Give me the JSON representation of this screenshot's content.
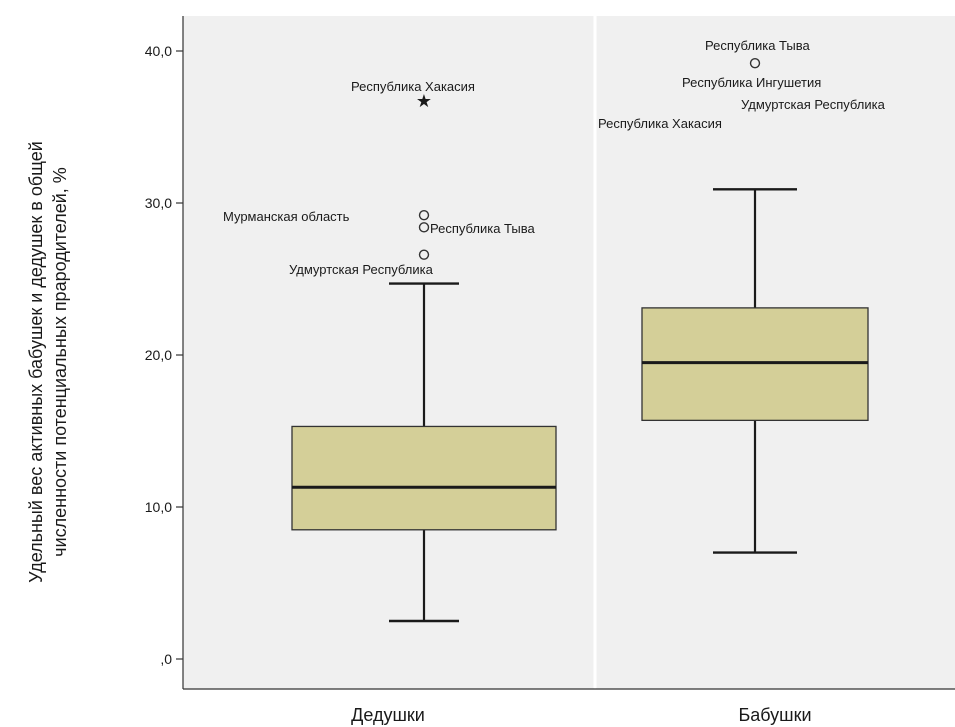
{
  "chart_data": {
    "type": "boxplot",
    "ylabel_lines": [
      "Удельный вес активных бабушек и дедушек в общей",
      "численности потенциальных прародителей, %"
    ],
    "ylim": [
      0,
      40
    ],
    "y_ticks": [
      0,
      10,
      20,
      30,
      40
    ],
    "y_tick_labels": [
      ",0",
      "10,0",
      "20,0",
      "30,0",
      "40,0"
    ],
    "grid": false,
    "colors": {
      "panel": "#f0f0f0",
      "box": "#d4cf98",
      "line": "#1a1a1a",
      "divider": "#ffffff"
    },
    "categories": [
      "Дедушки",
      "Бабушки"
    ],
    "boxes": [
      {
        "category": "Дедушки",
        "whisker_low": 2.5,
        "q1": 8.5,
        "median": 11.3,
        "q3": 15.3,
        "whisker_high": 24.7,
        "outliers": [
          {
            "value": 36.7,
            "marker": "star",
            "label": "Республика Хакасия"
          },
          {
            "value": 29.2,
            "marker": "circle",
            "label": "Мурманская область"
          },
          {
            "value": 28.4,
            "marker": "circle",
            "label": "Республика Тыва"
          },
          {
            "value": 26.6,
            "marker": "circle",
            "label": "Удмуртская Республика"
          }
        ]
      },
      {
        "category": "Бабушки",
        "whisker_low": 7.0,
        "q1": 15.7,
        "median": 19.5,
        "q3": 23.1,
        "whisker_high": 30.9,
        "outliers": [
          {
            "value": 39.2,
            "marker": "circle",
            "label": "Республика Тыва"
          },
          {
            "value": 37.6,
            "marker": "circle",
            "label": "Республика Ингушетия"
          },
          {
            "value": 36.9,
            "marker": "circle",
            "label": "Удмуртская Республика"
          },
          {
            "value": 35.8,
            "marker": "circle",
            "label": "Республика Хакасия"
          }
        ]
      }
    ]
  }
}
